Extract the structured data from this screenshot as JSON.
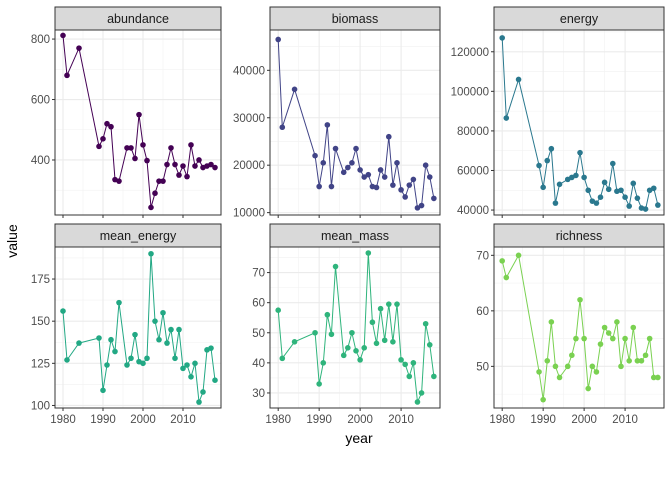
{
  "chart_data": {
    "type": "line",
    "xlabel": "year",
    "ylabel": "value",
    "grid": true,
    "x_ticks": [
      1980,
      1990,
      2000,
      2010
    ],
    "xlim": [
      1978,
      2019.5
    ],
    "years": [
      1980,
      1981,
      1984,
      1989,
      1990,
      1991,
      1992,
      1993,
      1994,
      1996,
      1997,
      1998,
      1999,
      2000,
      2001,
      2002,
      2003,
      2004,
      2005,
      2006,
      2007,
      2008,
      2009,
      2010,
      2011,
      2012,
      2013,
      2014,
      2015,
      2016,
      2017,
      2018
    ],
    "panels": [
      {
        "name": "abundance",
        "color": "#440154",
        "ylim": [
          218,
          830
        ],
        "y_ticks": [
          400,
          600,
          800
        ],
        "y_tick_labels": [
          "400",
          "600",
          "800"
        ],
        "values": [
          812,
          680,
          770,
          445,
          470,
          520,
          510,
          335,
          330,
          440,
          440,
          405,
          550,
          450,
          398,
          243,
          290,
          330,
          330,
          385,
          440,
          385,
          350,
          380,
          345,
          450,
          380,
          400,
          375,
          380,
          385,
          375
        ]
      },
      {
        "name": "biomass",
        "color": "#414487",
        "ylim": [
          9500,
          48500
        ],
        "y_ticks": [
          10000,
          20000,
          30000,
          40000
        ],
        "y_tick_labels": [
          "10000",
          "20000",
          "30000",
          "40000"
        ],
        "values": [
          46500,
          28000,
          36000,
          22000,
          15500,
          20500,
          28500,
          15500,
          23500,
          18500,
          19500,
          20500,
          23500,
          19000,
          17500,
          18000,
          15500,
          15300,
          19000,
          17500,
          26000,
          15800,
          20500,
          14800,
          13300,
          15800,
          17000,
          11000,
          11500,
          20000,
          17500,
          13000
        ]
      },
      {
        "name": "energy",
        "color": "#2a788e",
        "ylim": [
          37500,
          131000
        ],
        "y_ticks": [
          40000,
          60000,
          80000,
          100000,
          120000
        ],
        "y_tick_labels": [
          "40000",
          "60000",
          "80000",
          "100000",
          "120000"
        ],
        "values": [
          127000,
          86500,
          106000,
          62500,
          51500,
          65000,
          71000,
          43500,
          53000,
          55500,
          56500,
          57500,
          69000,
          56500,
          50000,
          44500,
          43500,
          46500,
          54000,
          50500,
          63500,
          49500,
          50000,
          46500,
          42000,
          53500,
          46000,
          41000,
          40500,
          50000,
          51000,
          42500
        ]
      },
      {
        "name": "mean_energy",
        "color": "#22a884",
        "ylim": [
          98.5,
          194
        ],
        "y_ticks": [
          100,
          125,
          150,
          175
        ],
        "y_tick_labels": [
          "100",
          "125",
          "150",
          "175"
        ],
        "values": [
          156,
          127,
          137,
          140,
          109,
          124,
          139,
          132,
          161,
          124,
          128,
          142,
          126,
          125,
          128,
          190,
          150,
          139,
          155,
          137,
          145,
          128,
          145,
          122,
          124,
          117,
          125,
          102,
          108,
          133,
          134,
          115
        ]
      },
      {
        "name": "mean_mass",
        "color": "#2fb47c",
        "ylim": [
          25,
          78.5
        ],
        "y_ticks": [
          30,
          40,
          50,
          60,
          70
        ],
        "y_tick_labels": [
          "30",
          "40",
          "50",
          "60",
          "70"
        ],
        "values": [
          57.5,
          41.5,
          47,
          50,
          33,
          40,
          56,
          49.5,
          72,
          42.5,
          45,
          50,
          44,
          41,
          45,
          76.5,
          53.5,
          46.5,
          58,
          47.5,
          59.5,
          47,
          59.5,
          41,
          39.5,
          35.5,
          40,
          27,
          30,
          53,
          46,
          35.5
        ]
      },
      {
        "name": "richness",
        "color": "#7ad151",
        "ylim": [
          42.5,
          71.5
        ],
        "y_ticks": [
          50,
          60,
          70
        ],
        "y_tick_labels": [
          "50",
          "60",
          "70"
        ],
        "values": [
          69,
          66,
          70,
          49,
          44,
          51,
          58,
          50,
          48,
          50,
          52,
          55,
          62,
          55,
          46,
          50,
          49,
          54,
          57,
          56,
          55,
          58,
          50,
          55,
          51,
          57,
          51,
          51,
          52,
          55,
          48,
          48
        ]
      }
    ]
  }
}
